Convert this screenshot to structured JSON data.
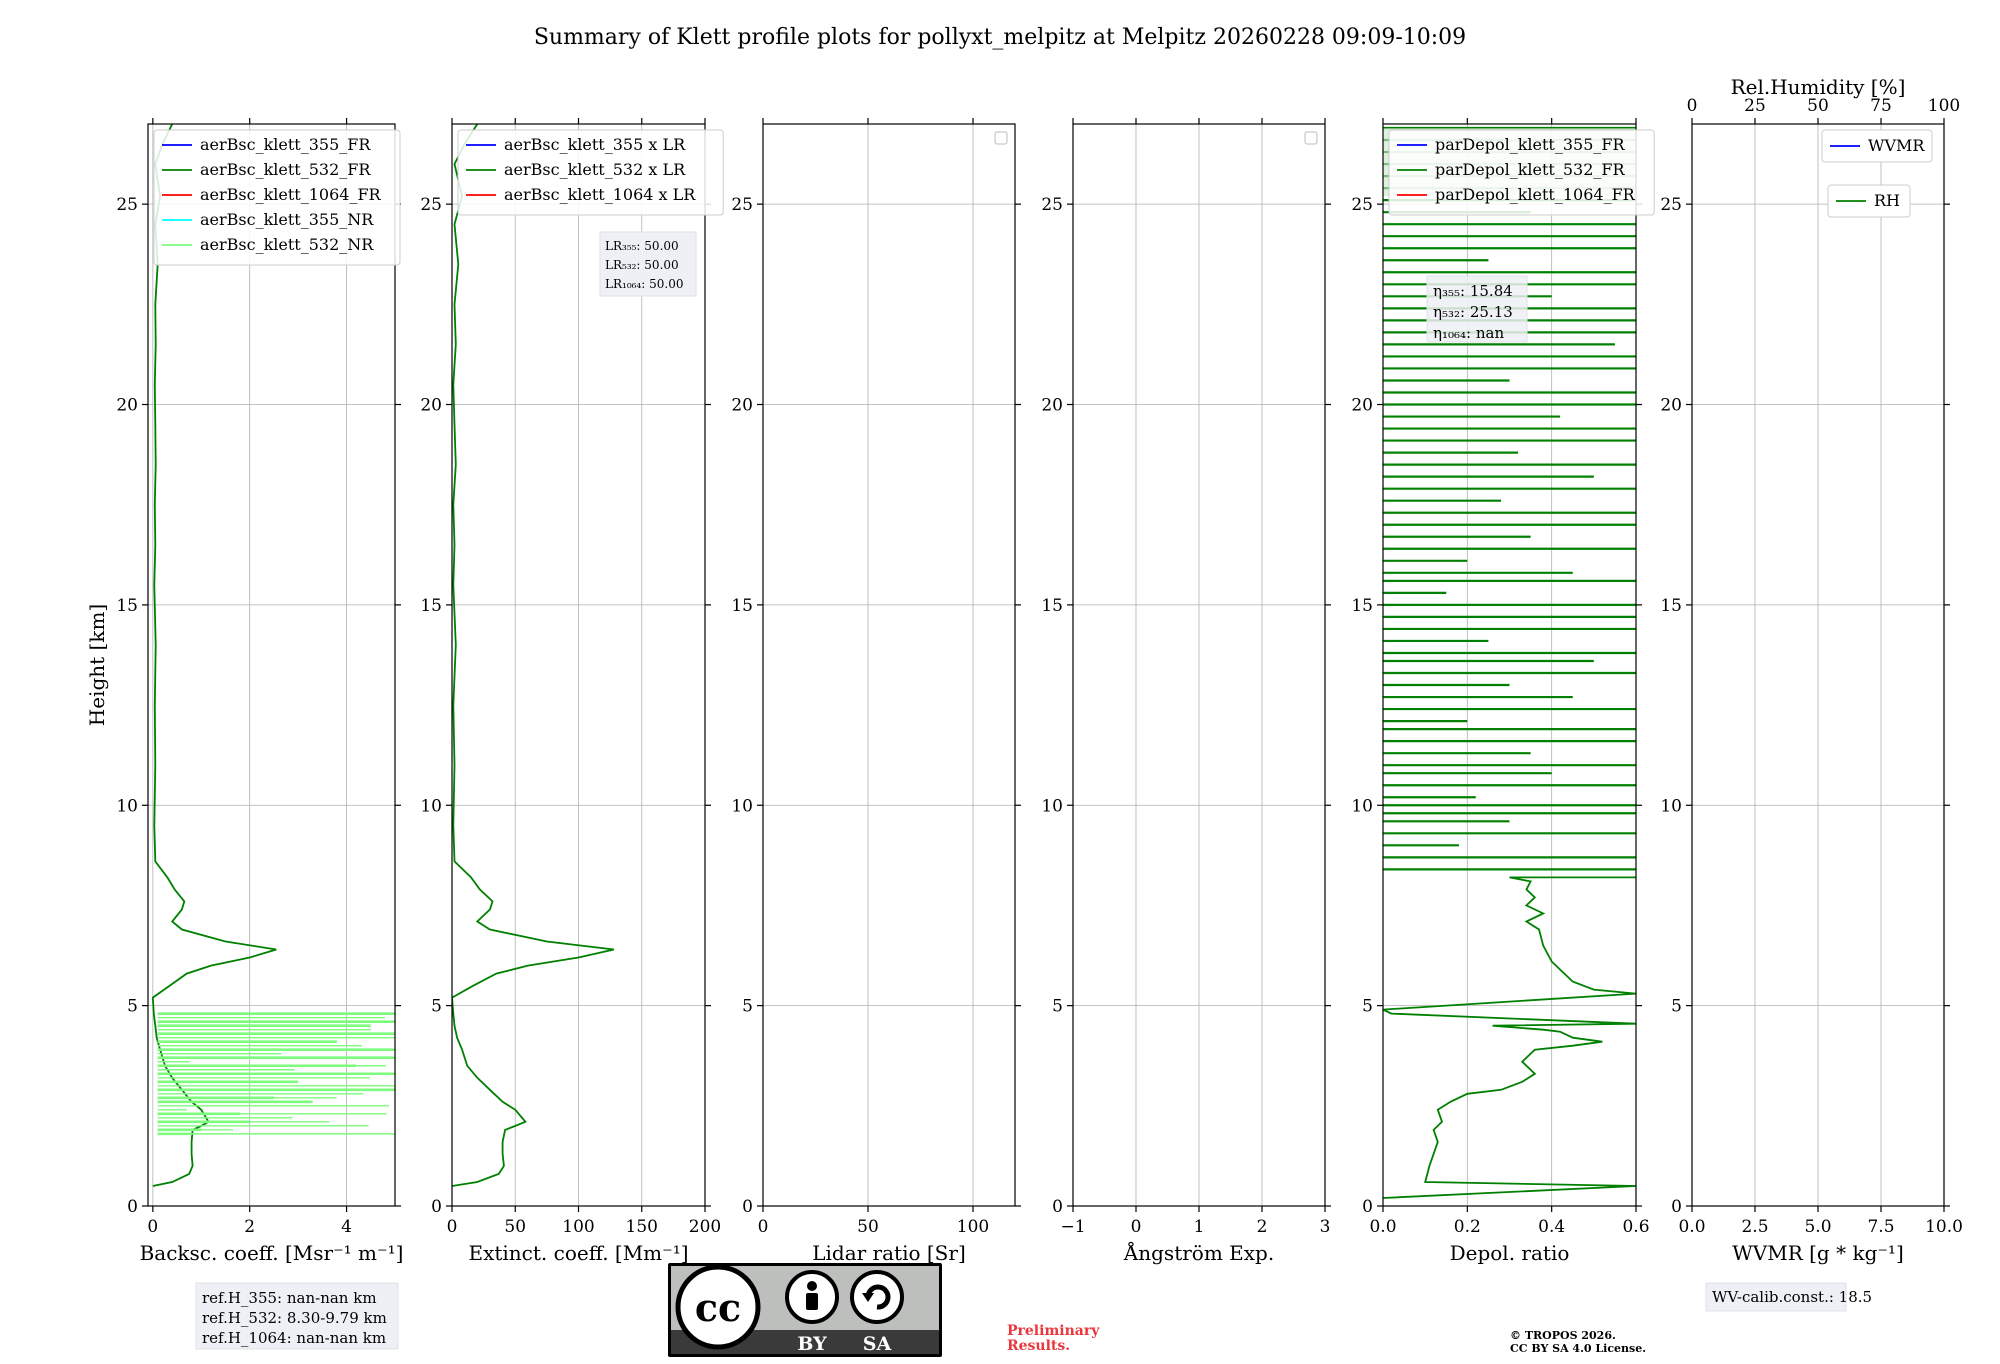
{
  "title": "Summary of Klett profile plots for pollyxt_melpitz at Melpitz 20260228 09:09-10:09",
  "colors": {
    "blue": "#0000ff",
    "green": "#008000",
    "red": "#ff0000",
    "cyan": "#00ffff",
    "lightgreen": "#7dfb7d"
  },
  "chart_data": [
    {
      "id": "backscatter",
      "type": "line",
      "xlabel": "Backsc. coeff. [Msr⁻¹ m⁻¹]",
      "ylabel": "Height [km]",
      "xlim": [
        -0.1,
        5
      ],
      "ylim": [
        0,
        27
      ],
      "xticks": [
        0,
        2,
        4
      ],
      "xtick_labels": [
        "0",
        "2",
        "4"
      ],
      "yticks": [
        0,
        5,
        10,
        15,
        20,
        25
      ],
      "ytick_labels": [
        "0",
        "5",
        "10",
        "15",
        "20",
        "25"
      ],
      "legend": [
        {
          "label": "aerBsc_klett_355_FR",
          "color": "#0000ff"
        },
        {
          "label": "aerBsc_klett_532_FR",
          "color": "#008000"
        },
        {
          "label": "aerBsc_klett_1064_FR",
          "color": "#ff0000"
        },
        {
          "label": "aerBsc_klett_355_NR",
          "color": "#00ffff"
        },
        {
          "label": "aerBsc_klett_532_NR",
          "color": "#7dfb7d"
        }
      ],
      "series": [
        {
          "name": "aerBsc_klett_532_FR",
          "color": "#008000",
          "x": [
            0.0,
            0.4,
            0.75,
            0.82,
            0.8,
            0.8,
            0.82,
            1.0,
            1.15,
            1.0,
            0.8,
            0.6,
            0.4,
            0.25,
            0.15,
            0.08,
            0.05,
            0.02,
            0.0,
            0.35,
            0.7,
            1.2,
            2.0,
            2.55,
            1.5,
            0.6,
            0.4,
            0.6,
            0.65,
            0.45,
            0.3,
            0.05,
            0.03,
            0.05,
            0.04,
            0.06,
            0.03,
            0.05,
            0.04,
            0.06,
            0.05,
            0.04,
            0.06,
            0.05,
            0.1,
            0.05,
            0.15,
            0.05,
            0.2,
            0.4
          ],
          "y": [
            0.5,
            0.6,
            0.8,
            1.0,
            1.3,
            1.6,
            1.9,
            2.0,
            2.1,
            2.4,
            2.6,
            2.9,
            3.2,
            3.5,
            3.9,
            4.2,
            4.5,
            4.8,
            5.2,
            5.5,
            5.8,
            6.0,
            6.2,
            6.4,
            6.6,
            6.9,
            7.1,
            7.4,
            7.6,
            7.9,
            8.2,
            8.6,
            9.5,
            11,
            12.5,
            14,
            15.5,
            16.5,
            17.5,
            18.5,
            19.5,
            20.5,
            21.5,
            22.5,
            23.5,
            24.5,
            25.2,
            26,
            26.5,
            27
          ]
        },
        {
          "name": "aerBsc_klett_532_NR",
          "color": "#7dfb7d",
          "x": [
            5.0,
            5.0,
            4.5,
            5.0,
            3.8,
            5.0,
            5.0,
            4.2,
            5.0,
            3.0,
            5.0,
            2.5,
            3.3,
            1.8,
            2.0,
            1.0,
            0.8
          ],
          "y": [
            4.8,
            4.6,
            4.5,
            4.3,
            4.1,
            3.9,
            3.7,
            3.5,
            3.3,
            3.1,
            2.9,
            2.7,
            2.6,
            2.3,
            2.1,
            1.9,
            1.8
          ]
        }
      ],
      "annotation": [
        "ref.H_355: nan-nan km",
        "ref.H_532: 8.30-9.79 km",
        "ref.H_1064: nan-nan km"
      ]
    },
    {
      "id": "extinction",
      "type": "line",
      "xlabel": "Extinct. coeff. [Mm⁻¹]",
      "xlim": [
        0,
        200
      ],
      "ylim": [
        0,
        27
      ],
      "xticks": [
        0,
        50,
        100,
        150,
        200
      ],
      "xtick_labels": [
        "0",
        "50",
        "100",
        "150",
        "200"
      ],
      "yticks": [
        0,
        5,
        10,
        15,
        20,
        25
      ],
      "ytick_labels": [
        "0",
        "5",
        "10",
        "15",
        "20",
        "25"
      ],
      "legend": [
        {
          "label": "aerBsc_klett_355 x LR",
          "color": "#0000ff"
        },
        {
          "label": "aerBsc_klett_532 x LR",
          "color": "#008000"
        },
        {
          "label": "aerBsc_klett_1064 x LR",
          "color": "#ff0000"
        }
      ],
      "lr_labels": [
        "LR₃₅₅: 50.00",
        "LR₅₃₂: 50.00",
        "LR₁₀₆₄: 50.00"
      ],
      "series": [
        {
          "name": "aerBsc_klett_532 x LR",
          "color": "#008000",
          "x": [
            0,
            20,
            37,
            41,
            40,
            40,
            42,
            50,
            58,
            50,
            40,
            30,
            20,
            12,
            8,
            4,
            2,
            1,
            0,
            17,
            35,
            60,
            100,
            128,
            75,
            30,
            20,
            30,
            32,
            22,
            15,
            2,
            1,
            2,
            1,
            3,
            1,
            2,
            1,
            3,
            2,
            1,
            3,
            2,
            5,
            2,
            8,
            2,
            10,
            20
          ],
          "y": [
            0.5,
            0.6,
            0.8,
            1.0,
            1.3,
            1.6,
            1.9,
            2.0,
            2.1,
            2.4,
            2.6,
            2.9,
            3.2,
            3.5,
            3.9,
            4.2,
            4.5,
            4.8,
            5.2,
            5.5,
            5.8,
            6.0,
            6.2,
            6.4,
            6.6,
            6.9,
            7.1,
            7.4,
            7.6,
            7.9,
            8.2,
            8.6,
            9.5,
            11,
            12.5,
            14,
            15.5,
            16.5,
            17.5,
            18.5,
            19.5,
            20.5,
            21.5,
            22.5,
            23.5,
            24.5,
            25.2,
            26,
            26.5,
            27
          ]
        }
      ]
    },
    {
      "id": "lidar_ratio",
      "type": "line",
      "xlabel": "Lidar ratio [Sr]",
      "xlim": [
        0,
        120
      ],
      "ylim": [
        0,
        27
      ],
      "xticks": [
        0,
        50,
        100
      ],
      "xtick_labels": [
        "0",
        "50",
        "100"
      ],
      "yticks": [
        0,
        5,
        10,
        15,
        20,
        25
      ],
      "ytick_labels": [
        "0",
        "5",
        "10",
        "15",
        "20",
        "25"
      ],
      "series": []
    },
    {
      "id": "angstrom",
      "type": "line",
      "xlabel": "Ångström Exp.",
      "xlim": [
        -1,
        3
      ],
      "ylim": [
        0,
        27
      ],
      "xticks": [
        -1,
        0,
        1,
        2,
        3
      ],
      "xtick_labels": [
        "−1",
        "0",
        "1",
        "2",
        "3"
      ],
      "yticks": [
        0,
        5,
        10,
        15,
        20,
        25
      ],
      "ytick_labels": [
        "0",
        "5",
        "10",
        "15",
        "20",
        "25"
      ],
      "series": []
    },
    {
      "id": "depol",
      "type": "line",
      "xlabel": "Depol. ratio",
      "xlim": [
        0,
        0.6
      ],
      "ylim": [
        0,
        27
      ],
      "xticks": [
        0,
        0.2,
        0.4,
        0.6
      ],
      "xtick_labels": [
        "0.0",
        "0.2",
        "0.4",
        "0.6"
      ],
      "yticks": [
        0,
        5,
        10,
        15,
        20,
        25
      ],
      "ytick_labels": [
        "0",
        "5",
        "10",
        "15",
        "20",
        "25"
      ],
      "legend": [
        {
          "label": "parDepol_klett_355_FR",
          "color": "#0000ff"
        },
        {
          "label": "parDepol_klett_532_FR",
          "color": "#008000"
        },
        {
          "label": "parDepol_klett_1064_FR",
          "color": "#ff0000"
        }
      ],
      "eta_labels": [
        "η₃₅₅: 15.84",
        "η₅₃₂: 25.13",
        "η₁₀₆₄: nan"
      ],
      "series": [
        {
          "name": "parDepol_klett_532_FR",
          "color": "#008000",
          "x": [
            0.0,
            0.6,
            0.1,
            0.11,
            0.12,
            0.13,
            0.12,
            0.14,
            0.13,
            0.16,
            0.2,
            0.28,
            0.33,
            0.36,
            0.33,
            0.36,
            0.45,
            0.52,
            0.45,
            0.42,
            0.38,
            0.26,
            0.6,
            0.02,
            0.0,
            0.6,
            0.6,
            0.5,
            0.45,
            0.42,
            0.4,
            0.38,
            0.37,
            0.34,
            0.38,
            0.34,
            0.36,
            0.34,
            0.35,
            0.3,
            0.6
          ],
          "y": [
            0.2,
            0.5,
            0.6,
            1.0,
            1.3,
            1.6,
            1.9,
            2.1,
            2.4,
            2.6,
            2.8,
            2.9,
            3.1,
            3.3,
            3.6,
            3.9,
            4.0,
            4.1,
            4.2,
            4.35,
            4.4,
            4.5,
            4.55,
            4.8,
            4.9,
            5.3,
            5.3,
            5.4,
            5.6,
            5.9,
            6.1,
            6.5,
            6.9,
            7.1,
            7.3,
            7.5,
            7.7,
            7.9,
            8.1,
            8.2,
            8.2
          ]
        }
      ],
      "noise_rows": [
        8.4,
        8.7,
        9.0,
        9.3,
        9.6,
        9.8,
        10.0,
        10.2,
        10.5,
        10.8,
        11.0,
        11.3,
        11.6,
        11.9,
        12.1,
        12.4,
        12.7,
        13.0,
        13.3,
        13.6,
        13.8,
        14.1,
        14.4,
        14.7,
        15.0,
        15.3,
        15.6,
        15.8,
        16.1,
        16.4,
        16.7,
        17.0,
        17.3,
        17.6,
        17.9,
        18.2,
        18.5,
        18.8,
        19.1,
        19.4,
        19.7,
        20.0,
        20.3,
        20.6,
        20.9,
        21.2,
        21.5,
        21.8,
        22.1,
        22.4,
        22.7,
        23.0,
        23.3,
        23.6,
        23.9,
        24.2,
        24.5,
        24.8,
        25.1,
        25.4,
        25.7,
        26.0,
        26.3,
        26.6,
        26.9
      ],
      "noise_lengths": [
        0.6,
        0.6,
        0.18,
        0.6,
        0.3,
        0.6,
        0.6,
        0.22,
        0.6,
        0.4,
        0.6,
        0.35,
        0.6,
        0.6,
        0.2,
        0.6,
        0.45,
        0.3,
        0.6,
        0.5,
        0.6,
        0.25,
        0.6,
        0.6,
        0.6,
        0.15,
        0.6,
        0.45,
        0.2,
        0.6,
        0.35,
        0.6,
        0.6,
        0.28,
        0.6,
        0.5,
        0.6,
        0.32,
        0.6,
        0.6,
        0.42,
        0.6,
        0.6,
        0.3,
        0.6,
        0.6,
        0.55,
        0.6,
        0.6,
        0.6,
        0.4,
        0.6,
        0.6,
        0.25,
        0.6,
        0.6,
        0.6,
        0.35,
        0.6,
        0.6,
        0.6,
        0.6,
        0.6,
        0.6,
        0.6
      ]
    },
    {
      "id": "wvmr",
      "type": "line",
      "xlabel": "WVMR [g * kg⁻¹]",
      "xlim": [
        0,
        10
      ],
      "ylim": [
        0,
        27
      ],
      "xticks": [
        0,
        2.5,
        5,
        7.5,
        10
      ],
      "xtick_labels": [
        "0.0",
        "2.5",
        "5.0",
        "7.5",
        "10.0"
      ],
      "top_xlabel": "Rel.Humidity [%]",
      "top_xticks": [
        0,
        25,
        50,
        75,
        100
      ],
      "top_xtick_labels": [
        "0",
        "25",
        "50",
        "75",
        "100"
      ],
      "yticks": [
        0,
        5,
        10,
        15,
        20,
        25
      ],
      "ytick_labels": [
        "0",
        "5",
        "10",
        "15",
        "20",
        "25"
      ],
      "legend_wvmr": {
        "label": "WVMR",
        "color": "#0000ff"
      },
      "legend_rh": {
        "label": "RH",
        "color": "#008000"
      },
      "series": [],
      "annotation": "WV-calib.const.: 18.5"
    }
  ],
  "footer": {
    "license_badge": {
      "cc": "cc",
      "by": "BY",
      "sa": "SA"
    },
    "preliminary": [
      "Preliminary",
      "Results."
    ],
    "copyright": [
      "© TROPOS 2026.",
      "CC BY SA 4.0 License."
    ]
  }
}
